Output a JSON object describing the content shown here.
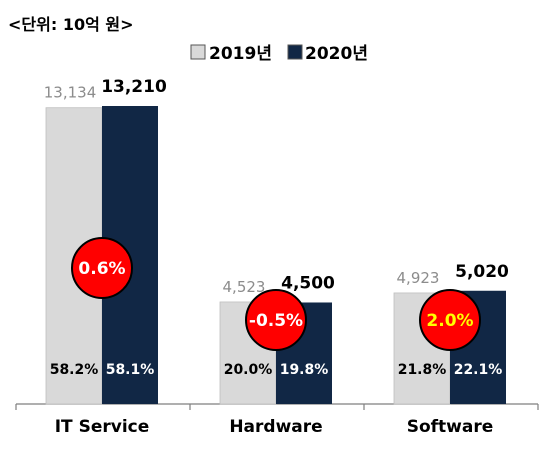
{
  "unit_label": "<단위: 10억 원>",
  "colors": {
    "y2019": "#d9d9d9",
    "y2020": "#112745",
    "val2019_text": "#8c8c8c",
    "val2020_text": "#000000",
    "badge_fill": "#ff0000",
    "badge_stroke": "#000000",
    "badge_text_default": "#ffffff",
    "badge_text_highlight": "#ffff00"
  },
  "chart_data": {
    "type": "bar",
    "categories": [
      "IT Service",
      "Hardware",
      "Software"
    ],
    "series": [
      {
        "name": "2019년",
        "values": [
          13134,
          4523,
          4923
        ],
        "value_labels": [
          "13,134",
          "4,523",
          "4,923"
        ],
        "share_labels": [
          "58.2%",
          "20.0%",
          "21.8%"
        ]
      },
      {
        "name": "2020년",
        "values": [
          13210,
          4500,
          5020
        ],
        "value_labels": [
          "13,210",
          "4,500",
          "5,020"
        ],
        "share_labels": [
          "58.1%",
          "19.8%",
          "22.1%"
        ]
      }
    ],
    "growth_labels": [
      "0.6%",
      "-0.5%",
      "2.0%"
    ],
    "growth_highlight": [
      false,
      false,
      true
    ],
    "legend_position": "top-center",
    "grid": false
  }
}
